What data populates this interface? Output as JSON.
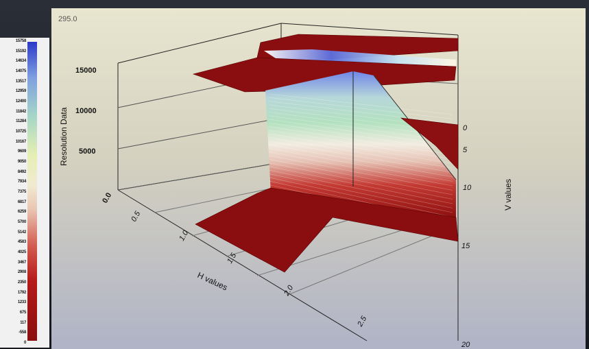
{
  "top_value": "295.0",
  "legend": {
    "ticks": [
      "15758",
      "15192",
      "14634",
      "14075",
      "13517",
      "12959",
      "12400",
      "11842",
      "11284",
      "10725",
      "10167",
      "9609",
      "9050",
      "8492",
      "7934",
      "7375",
      "6817",
      "6259",
      "5700",
      "5142",
      "4583",
      "4025",
      "3467",
      "2908",
      "2350",
      "1792",
      "1233",
      "675",
      "117",
      "-558",
      "0"
    ]
  },
  "chart_data": {
    "type": "surface3d",
    "title": "",
    "zlabel": "Resolution Data",
    "xlabel": "H values",
    "ylabel": "V values",
    "z_ticks": [
      "0.0",
      "5000",
      "10000",
      "15000"
    ],
    "x_ticks": [
      "0.0",
      "0.5",
      "1.0",
      "1.5",
      "2.0",
      "2.5"
    ],
    "y_ticks": [
      "0",
      "5",
      "10",
      "15",
      "20"
    ],
    "zlim": [
      0,
      15758
    ],
    "colormap": [
      "#2a39c8",
      "#a6d6c7",
      "#f1ead2",
      "#d35d52",
      "#8a0f0f"
    ]
  }
}
